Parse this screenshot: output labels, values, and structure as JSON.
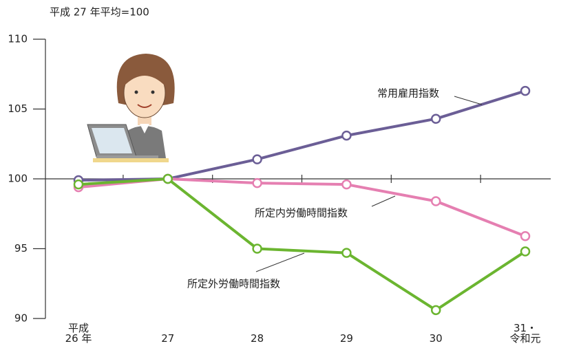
{
  "chart_data": {
    "type": "line",
    "subtitle": "平成 27 年平均=100",
    "categories": [
      "平成\n26 年",
      "27",
      "28",
      "29",
      "30",
      "31・\n令和元"
    ],
    "series": [
      {
        "name": "常用雇用指数",
        "color": "#6b5e96",
        "values": [
          99.9,
          100.0,
          101.4,
          103.1,
          104.3,
          106.3
        ]
      },
      {
        "name": "所定内労働時間指数",
        "color": "#e57fb1",
        "values": [
          99.4,
          100.0,
          99.7,
          99.6,
          98.4,
          95.9
        ]
      },
      {
        "name": "所定外労働時間指数",
        "color": "#6bb530",
        "values": [
          99.6,
          100.0,
          95.0,
          94.7,
          90.6,
          94.8
        ]
      }
    ],
    "ylim": [
      90,
      110
    ],
    "yticks": [
      90,
      95,
      100,
      105,
      110
    ]
  }
}
